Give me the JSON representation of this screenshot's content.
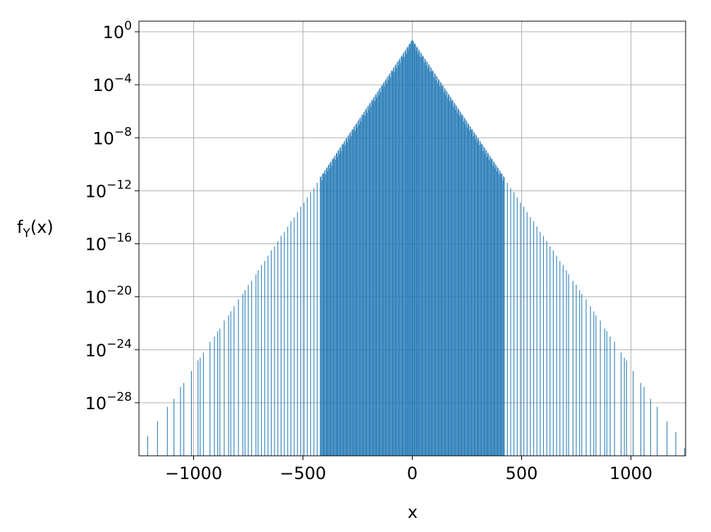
{
  "chart_data": {
    "type": "bar",
    "title": "",
    "xlabel": "x",
    "ylabel_base": "f",
    "ylabel_sub": "Y",
    "ylabel_tail": "(x)",
    "xlim": [
      -1250,
      1250
    ],
    "ylim_log10": [
      -32,
      0.8
    ],
    "y_scale": "log",
    "grid": true,
    "bar_color": "#1f77b4",
    "x_ticks": [
      {
        "value": -1000,
        "label": "−1000"
      },
      {
        "value": -500,
        "label": "−500"
      },
      {
        "value": 0,
        "label": "0"
      },
      {
        "value": 500,
        "label": "500"
      },
      {
        "value": 1000,
        "label": "1000"
      }
    ],
    "y_ticks": [
      {
        "value_log10": 0,
        "base": "10",
        "exp": "0"
      },
      {
        "value_log10": -4,
        "base": "10",
        "exp": "−4"
      },
      {
        "value_log10": -8,
        "base": "10",
        "exp": "−8"
      },
      {
        "value_log10": -12,
        "base": "10",
        "exp": "−12"
      },
      {
        "value_log10": -16,
        "base": "10",
        "exp": "−16"
      },
      {
        "value_log10": -20,
        "base": "10",
        "exp": "−20"
      },
      {
        "value_log10": -24,
        "base": "10",
        "exp": "−24"
      },
      {
        "value_log10": -28,
        "base": "10",
        "exp": "−28"
      }
    ],
    "envelope": {
      "description": "Symmetric Laplace-like density; log10 peak at x=0 and decays linearly with |x|",
      "peak_x": 0,
      "peak_log10": -0.6,
      "log10_decay_per_unit": 0.02468
    },
    "series": [
      {
        "x": [
          -1210,
          -1165,
          -1120,
          -1090,
          -1060,
          -1045,
          -1010,
          -980,
          -970,
          -955,
          -925,
          -905,
          -890,
          -880,
          -860,
          -840,
          -830,
          -815,
          -795,
          -775,
          -765,
          -750,
          -735,
          -715,
          -705,
          -690,
          -675,
          -660,
          -645,
          -630,
          -615,
          -600,
          -585,
          -570,
          -555,
          -540,
          -525,
          -510,
          -495,
          -480,
          -465,
          -450,
          -435,
          -420,
          -405,
          -390,
          -375,
          -360,
          -345,
          -330,
          -315,
          -300,
          -285,
          -270,
          -255,
          -240,
          -225,
          -210,
          -195,
          -180,
          -165,
          -150,
          -135,
          -120,
          -105,
          -90,
          -75,
          -60,
          -45,
          -30,
          -20,
          -10,
          0,
          10,
          20,
          30,
          45,
          60,
          75,
          90,
          105,
          120,
          135,
          150,
          165,
          180,
          195,
          210,
          225,
          240,
          255,
          270,
          285,
          300,
          315,
          330,
          345,
          360,
          375,
          390,
          405,
          420,
          435,
          450,
          465,
          480,
          495,
          510,
          525,
          540,
          555,
          570,
          585,
          600,
          615,
          630,
          645,
          660,
          675,
          690,
          705,
          715,
          735,
          750,
          765,
          775,
          795,
          815,
          830,
          840,
          860,
          880,
          890,
          905,
          925,
          955,
          970,
          980,
          1010,
          1045,
          1060,
          1090,
          1120,
          1165,
          1205,
          1245
        ],
        "log10_y": [
          -30.5,
          -29.4,
          -28.3,
          -27.7,
          -26.8,
          -26.5,
          -25.6,
          -24.8,
          -24.6,
          -24.2,
          -23.4,
          -23.0,
          -22.6,
          -22.4,
          -21.8,
          -21.4,
          -21.1,
          -20.7,
          -20.2,
          -19.8,
          -19.5,
          -19.1,
          -18.8,
          -18.3,
          -18.0,
          -17.6,
          -17.3,
          -16.9,
          -16.5,
          -16.2,
          -15.8,
          -15.4,
          -15.1,
          -14.7,
          -14.3,
          -14.0,
          -13.6,
          -13.2,
          -12.9,
          -12.5,
          -12.1,
          -11.8,
          -11.4,
          -11.0,
          -10.7,
          -10.3,
          -9.9,
          -9.6,
          -9.2,
          -8.8,
          -8.5,
          -8.1,
          -7.7,
          -7.4,
          -7.0,
          -6.6,
          -6.3,
          -5.9,
          -5.5,
          -5.2,
          -4.8,
          -4.4,
          -4.1,
          -3.7,
          -3.3,
          -3.0,
          -2.6,
          -2.2,
          -1.9,
          -1.5,
          -1.2,
          -0.9,
          -0.6,
          -0.9,
          -1.2,
          -1.5,
          -1.9,
          -2.2,
          -2.6,
          -3.0,
          -3.3,
          -3.7,
          -4.1,
          -4.4,
          -4.8,
          -5.2,
          -5.5,
          -5.9,
          -6.3,
          -6.6,
          -7.0,
          -7.4,
          -7.7,
          -8.1,
          -8.5,
          -8.8,
          -9.2,
          -9.6,
          -9.9,
          -10.3,
          -10.7,
          -11.0,
          -11.4,
          -11.8,
          -12.1,
          -12.5,
          -12.9,
          -13.2,
          -13.6,
          -14.0,
          -14.3,
          -14.7,
          -15.1,
          -15.4,
          -15.8,
          -16.2,
          -16.5,
          -16.9,
          -17.3,
          -17.6,
          -18.0,
          -18.3,
          -18.8,
          -19.1,
          -19.5,
          -19.8,
          -20.2,
          -20.7,
          -21.1,
          -21.4,
          -21.8,
          -22.4,
          -22.6,
          -23.0,
          -23.4,
          -24.2,
          -24.6,
          -24.8,
          -25.6,
          -26.5,
          -26.8,
          -27.7,
          -28.3,
          -29.4,
          -30.2,
          -31.4
        ]
      }
    ]
  }
}
